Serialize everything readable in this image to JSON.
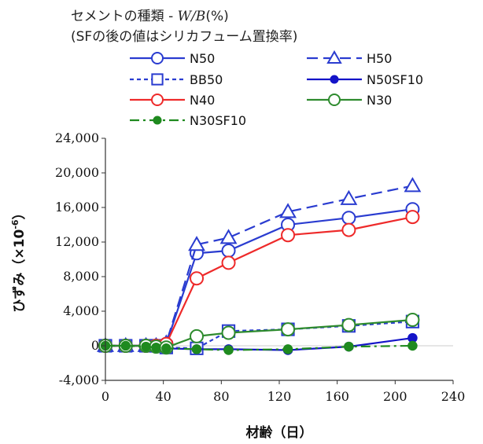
{
  "chart_data": {
    "type": "line",
    "title_line1_main": "セメントの種類 - ",
    "title_line1_italic": "W/B",
    "title_line1_suffix": "(%)",
    "title_line2": "(SFの後の値はシリカフューム置換率)",
    "xlabel": "材齢（日）",
    "ylabel_main": "ひずみ（×10",
    "ylabel_sup": "-6",
    "ylabel_close": "）",
    "xlim": [
      0,
      240
    ],
    "ylim": [
      -4000,
      24000
    ],
    "x_ticks": [
      0,
      40,
      80,
      120,
      160,
      200,
      240
    ],
    "x_tick_labels": [
      "0",
      "40",
      "80",
      "120",
      "160",
      "200",
      "240"
    ],
    "y_ticks": [
      -4000,
      0,
      4000,
      8000,
      12000,
      16000,
      20000,
      24000
    ],
    "y_tick_labels": [
      "-4,000",
      "0",
      "4,000",
      "8,000",
      "12,000",
      "16,000",
      "20,000",
      "24,000"
    ],
    "grid": false,
    "legend_position": "top",
    "series": [
      {
        "name": "N50",
        "color": "#2a3cd0",
        "marker": "circle-open",
        "dash": "solid",
        "points": [
          [
            0,
            0
          ],
          [
            14,
            0
          ],
          [
            28,
            0
          ],
          [
            35,
            0
          ],
          [
            42,
            200
          ],
          [
            63,
            10700
          ],
          [
            85,
            11000
          ],
          [
            126,
            14000
          ],
          [
            168,
            14800
          ],
          [
            212,
            15800
          ]
        ]
      },
      {
        "name": "H50",
        "color": "#2a3cd0",
        "marker": "triangle-open",
        "dash": "longdash",
        "points": [
          [
            0,
            0
          ],
          [
            14,
            0
          ],
          [
            28,
            0
          ],
          [
            35,
            0
          ],
          [
            42,
            300
          ],
          [
            63,
            11700
          ],
          [
            85,
            12500
          ],
          [
            126,
            15500
          ],
          [
            168,
            17000
          ],
          [
            212,
            18500
          ]
        ]
      },
      {
        "name": "BB50",
        "color": "#2a3cd0",
        "marker": "square-open",
        "dash": "shortdash",
        "points": [
          [
            0,
            0
          ],
          [
            14,
            0
          ],
          [
            28,
            0
          ],
          [
            35,
            0
          ],
          [
            42,
            -200
          ],
          [
            63,
            -300
          ],
          [
            85,
            1700
          ],
          [
            126,
            1900
          ],
          [
            168,
            2300
          ],
          [
            212,
            2800
          ]
        ]
      },
      {
        "name": "N50SF10",
        "color": "#1414c8",
        "marker": "circle-filled",
        "dash": "solid",
        "points": [
          [
            0,
            0
          ],
          [
            14,
            0
          ],
          [
            28,
            0
          ],
          [
            35,
            -100
          ],
          [
            42,
            -300
          ],
          [
            63,
            -400
          ],
          [
            85,
            -400
          ],
          [
            126,
            -500
          ],
          [
            168,
            -100
          ],
          [
            212,
            900
          ]
        ]
      },
      {
        "name": "N40",
        "color": "#ee2a2a",
        "marker": "circle-open",
        "dash": "solid",
        "points": [
          [
            0,
            0
          ],
          [
            14,
            0
          ],
          [
            28,
            0
          ],
          [
            35,
            0
          ],
          [
            42,
            200
          ],
          [
            63,
            7800
          ],
          [
            85,
            9600
          ],
          [
            126,
            12800
          ],
          [
            168,
            13400
          ],
          [
            212,
            14900
          ]
        ]
      },
      {
        "name": "N30",
        "color": "#2e8b2e",
        "marker": "circle-open",
        "dash": "solid",
        "points": [
          [
            0,
            0
          ],
          [
            14,
            0
          ],
          [
            28,
            0
          ],
          [
            35,
            -100
          ],
          [
            42,
            -200
          ],
          [
            63,
            1100
          ],
          [
            85,
            1500
          ],
          [
            126,
            1900
          ],
          [
            168,
            2400
          ],
          [
            212,
            3000
          ]
        ]
      },
      {
        "name": "N30SF10",
        "color": "#1f8a1f",
        "marker": "circle-filled",
        "dash": "dashdot",
        "points": [
          [
            0,
            0
          ],
          [
            14,
            0
          ],
          [
            28,
            -100
          ],
          [
            35,
            -200
          ],
          [
            42,
            -300
          ],
          [
            63,
            -400
          ],
          [
            85,
            -500
          ],
          [
            126,
            -400
          ],
          [
            168,
            -100
          ],
          [
            212,
            0
          ]
        ]
      }
    ]
  }
}
